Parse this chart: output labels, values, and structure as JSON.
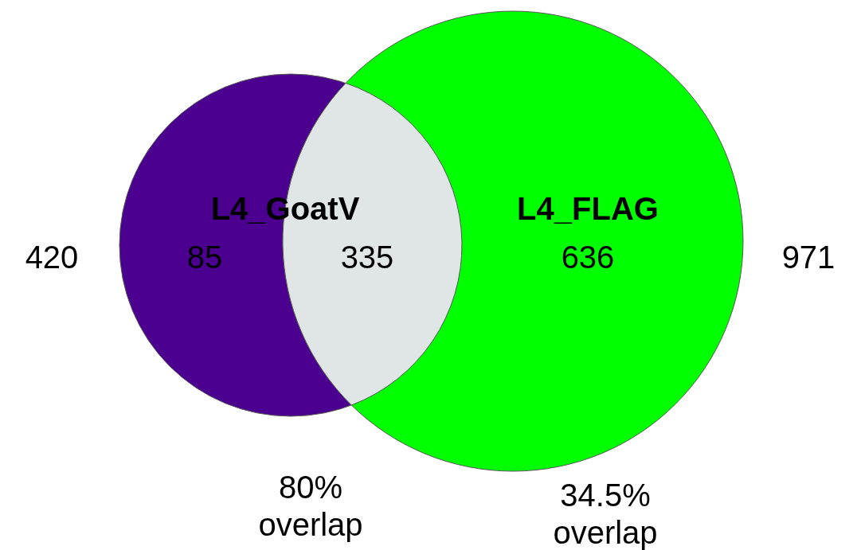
{
  "chart_data": {
    "type": "other",
    "categories": [
      "L4_GoatV",
      null,
      "L4_FLAG"
    ],
    "values": [
      85,
      335,
      636
    ],
    "data_labels": true,
    "colors": [
      "#4b0090",
      "#e0e6e6",
      "#00ff00"
    ],
    "annotations": [
      "420",
      "971",
      "80% overlap",
      "34.5% overlap"
    ]
  }
}
